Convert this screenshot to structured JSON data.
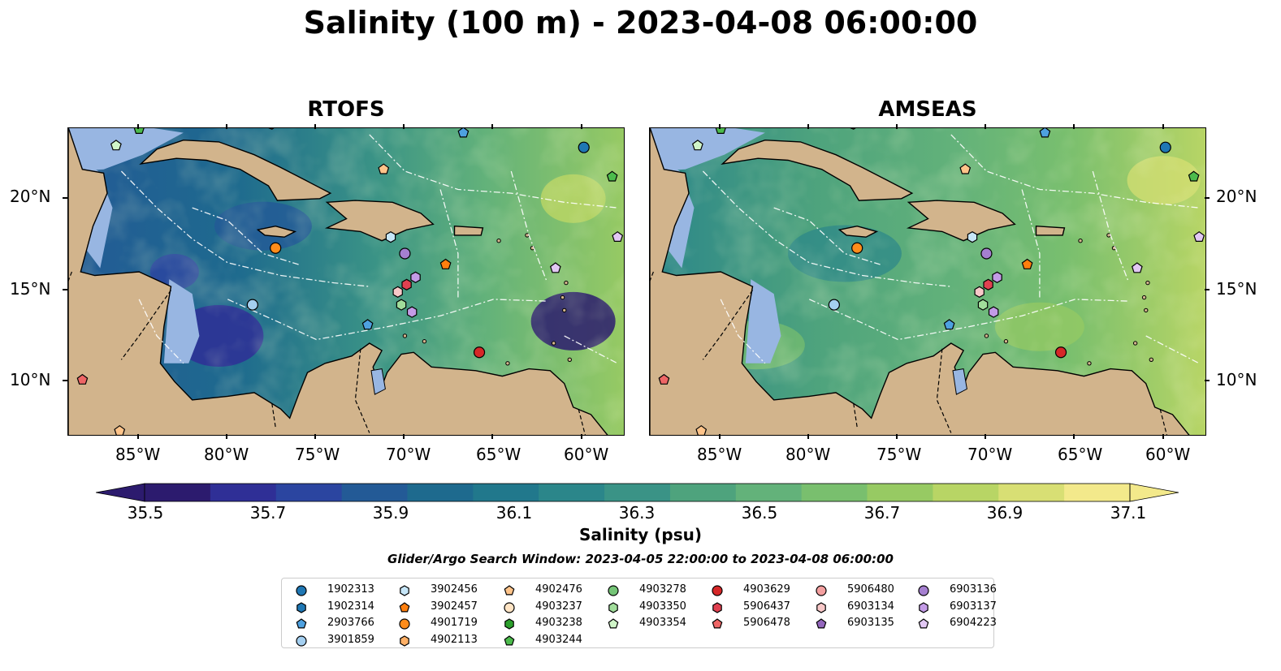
{
  "title": "Salinity (100 m) - 2023-04-08 06:00:00",
  "panels": [
    {
      "title": "RTOFS",
      "field_style": "rtofs"
    },
    {
      "title": "AMSEAS",
      "field_style": "amseas"
    }
  ],
  "lat_ticks": [
    "20°N",
    "15°N",
    "10°N"
  ],
  "lon_ticks": [
    "85°W",
    "80°W",
    "75°W",
    "70°W",
    "65°W",
    "60°W"
  ],
  "colorbar": {
    "label": "Salinity (psu)",
    "ticks": [
      "35.5",
      "35.7",
      "35.9",
      "36.1",
      "36.3",
      "36.5",
      "36.7",
      "36.9",
      "37.1"
    ],
    "colors": [
      "#2c1b6e",
      "#2f2f96",
      "#2b45a0",
      "#235a96",
      "#1e6a8e",
      "#21788c",
      "#2b868a",
      "#3a9386",
      "#4ea37d",
      "#63b27a",
      "#79bf6e",
      "#97ca63",
      "#b8d565",
      "#d8df74",
      "#f3e98b"
    ],
    "extend": "both"
  },
  "search_window": "Glider/Argo Search Window: 2023-04-05 22:00:00 to 2023-04-08 06:00:00",
  "legend_items": [
    {
      "id": "1902313",
      "marker": "circle",
      "color": "#1f77b4"
    },
    {
      "id": "1902314",
      "marker": "hexagon",
      "color": "#1f77b4"
    },
    {
      "id": "2903766",
      "marker": "pentagon",
      "color": "#4ea1e0"
    },
    {
      "id": "3901859",
      "marker": "circle",
      "color": "#a4cff0"
    },
    {
      "id": "3902456",
      "marker": "hexagon",
      "color": "#c6e6f8"
    },
    {
      "id": "3902457",
      "marker": "pentagon",
      "color": "#ff7f0e"
    },
    {
      "id": "4901719",
      "marker": "circle",
      "color": "#ff8c1a"
    },
    {
      "id": "4902113",
      "marker": "hexagon",
      "color": "#ffb066"
    },
    {
      "id": "4902476",
      "marker": "pentagon",
      "color": "#ffc48a"
    },
    {
      "id": "4903237",
      "marker": "circle",
      "color": "#ffe4c4"
    },
    {
      "id": "4903238",
      "marker": "hexagon",
      "color": "#2ca02c"
    },
    {
      "id": "4903244",
      "marker": "pentagon",
      "color": "#4cbb4c"
    },
    {
      "id": "4903278",
      "marker": "circle",
      "color": "#74c476"
    },
    {
      "id": "4903350",
      "marker": "hexagon",
      "color": "#a1dd9b"
    },
    {
      "id": "4903354",
      "marker": "pentagon",
      "color": "#d0f5c8"
    },
    {
      "id": "4903629",
      "marker": "circle",
      "color": "#d62728"
    },
    {
      "id": "5906437",
      "marker": "hexagon",
      "color": "#e04050"
    },
    {
      "id": "5906478",
      "marker": "pentagon",
      "color": "#ee6666"
    },
    {
      "id": "5906480",
      "marker": "circle",
      "color": "#f4a0a0"
    },
    {
      "id": "6903134",
      "marker": "hexagon",
      "color": "#f8c8c8"
    },
    {
      "id": "6903135",
      "marker": "pentagon",
      "color": "#9467bd"
    },
    {
      "id": "6903136",
      "marker": "circle",
      "color": "#a57fd0"
    },
    {
      "id": "6903137",
      "marker": "hexagon",
      "color": "#c39be6"
    },
    {
      "id": "6904223",
      "marker": "pentagon",
      "color": "#e2c8f4"
    }
  ],
  "observations": [
    {
      "id": "1902313",
      "lon": -59.9,
      "lat": 22.8
    },
    {
      "id": "4903244",
      "lon": -58.3,
      "lat": 21.2
    },
    {
      "id": "2903766",
      "lon": -66.7,
      "lat": 23.6
    },
    {
      "id": "4903354",
      "lon": -86.3,
      "lat": 22.9
    },
    {
      "id": "4903244",
      "lon": -85.0,
      "lat": 23.8
    },
    {
      "id": "4902476",
      "lon": -71.2,
      "lat": 21.6
    },
    {
      "id": "4901719",
      "lon": -77.3,
      "lat": 17.3
    },
    {
      "id": "3902456",
      "lon": -70.8,
      "lat": 17.9
    },
    {
      "id": "6903136",
      "lon": -70.0,
      "lat": 17.0
    },
    {
      "id": "3902457",
      "lon": -67.7,
      "lat": 16.4
    },
    {
      "id": "6903137",
      "lon": -69.4,
      "lat": 15.7
    },
    {
      "id": "5906437",
      "lon": -69.9,
      "lat": 15.3
    },
    {
      "id": "6903134",
      "lon": -70.4,
      "lat": 14.9
    },
    {
      "id": "4903350",
      "lon": -70.2,
      "lat": 14.2
    },
    {
      "id": "6903137",
      "lon": -69.6,
      "lat": 13.8
    },
    {
      "id": "3901859",
      "lon": -78.6,
      "lat": 14.2
    },
    {
      "id": "2903766",
      "lon": -72.1,
      "lat": 13.1
    },
    {
      "id": "4903629",
      "lon": -65.8,
      "lat": 11.6
    },
    {
      "id": "6904223",
      "lon": -61.5,
      "lat": 16.2
    },
    {
      "id": "6904223",
      "lon": -58.0,
      "lat": 17.9
    },
    {
      "id": "5906478",
      "lon": -88.2,
      "lat": 10.1
    },
    {
      "id": "4902476",
      "lon": -86.1,
      "lat": 7.3
    }
  ]
}
